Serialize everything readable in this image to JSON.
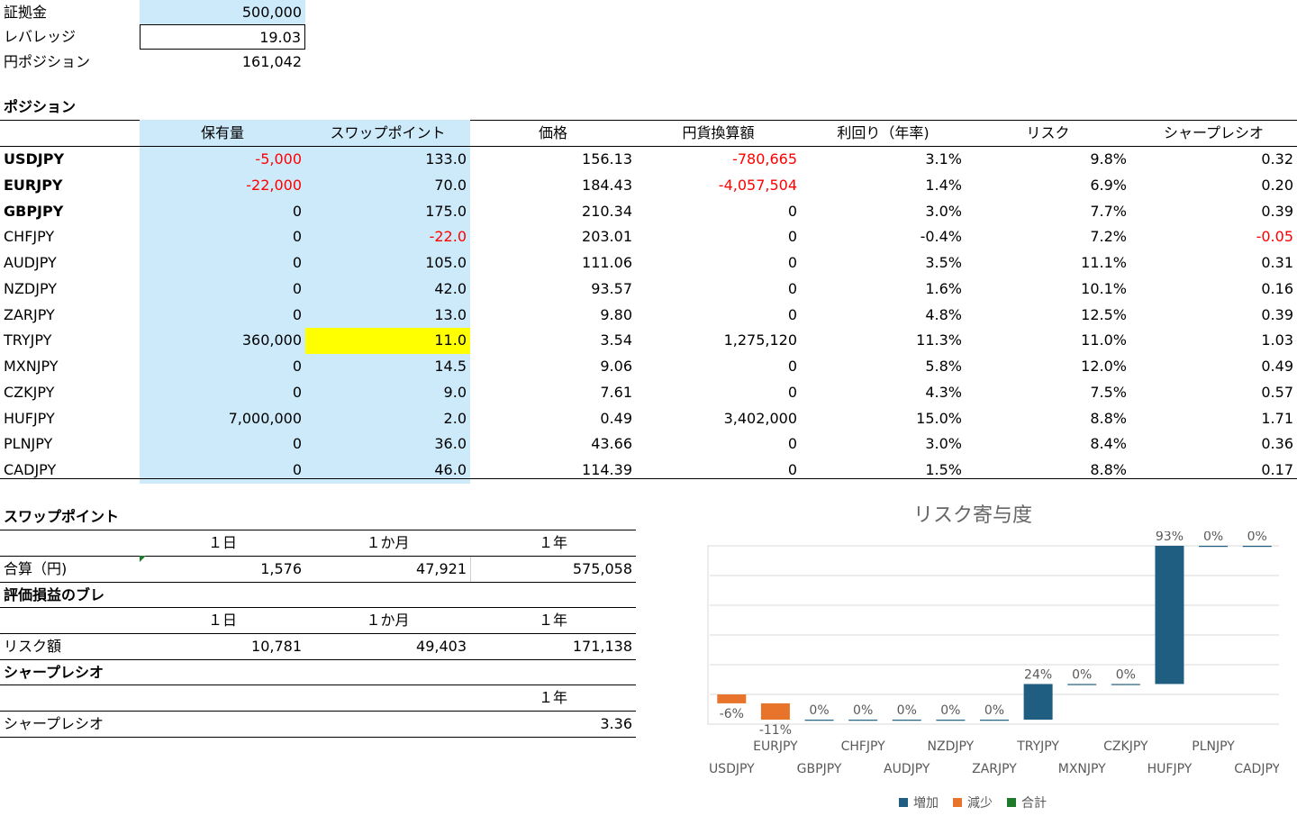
{
  "summary": {
    "margin_label": "証拠金",
    "margin_value": "500,000",
    "leverage_label": "レバレッジ",
    "leverage_value": "19.03",
    "yen_position_label": "円ポジション",
    "yen_position_value": "161,042"
  },
  "positions": {
    "section_title": "ポジション",
    "headers": [
      "保有量",
      "スワップポイント",
      "価格",
      "円貨換算額",
      "利回り（年率)",
      "リスク",
      "シャープレシオ"
    ],
    "rows": [
      {
        "pair": "USDJPY",
        "bold": true,
        "qty": "-5,000",
        "qty_neg": true,
        "swap": "133.0",
        "swap_neg": false,
        "price": "156.13",
        "yen": "-780,665",
        "yen_neg": true,
        "yield": "3.1%",
        "risk": "9.8%",
        "sharpe": "0.32",
        "sharpe_neg": false,
        "swap_hl": false
      },
      {
        "pair": "EURJPY",
        "bold": true,
        "qty": "-22,000",
        "qty_neg": true,
        "swap": "70.0",
        "swap_neg": false,
        "price": "184.43",
        "yen": "-4,057,504",
        "yen_neg": true,
        "yield": "1.4%",
        "risk": "6.9%",
        "sharpe": "0.20",
        "sharpe_neg": false,
        "swap_hl": false
      },
      {
        "pair": "GBPJPY",
        "bold": true,
        "qty": "0",
        "qty_neg": false,
        "swap": "175.0",
        "swap_neg": false,
        "price": "210.34",
        "yen": "0",
        "yen_neg": false,
        "yield": "3.0%",
        "risk": "7.7%",
        "sharpe": "0.39",
        "sharpe_neg": false,
        "swap_hl": false
      },
      {
        "pair": "CHFJPY",
        "bold": false,
        "qty": "0",
        "qty_neg": false,
        "swap": "-22.0",
        "swap_neg": true,
        "price": "203.01",
        "yen": "0",
        "yen_neg": false,
        "yield": "-0.4%",
        "risk": "7.2%",
        "sharpe": "-0.05",
        "sharpe_neg": true,
        "swap_hl": false
      },
      {
        "pair": "AUDJPY",
        "bold": false,
        "qty": "0",
        "qty_neg": false,
        "swap": "105.0",
        "swap_neg": false,
        "price": "111.06",
        "yen": "0",
        "yen_neg": false,
        "yield": "3.5%",
        "risk": "11.1%",
        "sharpe": "0.31",
        "sharpe_neg": false,
        "swap_hl": false
      },
      {
        "pair": "NZDJPY",
        "bold": false,
        "qty": "0",
        "qty_neg": false,
        "swap": "42.0",
        "swap_neg": false,
        "price": "93.57",
        "yen": "0",
        "yen_neg": false,
        "yield": "1.6%",
        "risk": "10.1%",
        "sharpe": "0.16",
        "sharpe_neg": false,
        "swap_hl": false
      },
      {
        "pair": "ZARJPY",
        "bold": false,
        "qty": "0",
        "qty_neg": false,
        "swap": "13.0",
        "swap_neg": false,
        "price": "9.80",
        "yen": "0",
        "yen_neg": false,
        "yield": "4.8%",
        "risk": "12.5%",
        "sharpe": "0.39",
        "sharpe_neg": false,
        "swap_hl": false
      },
      {
        "pair": "TRYJPY",
        "bold": false,
        "qty": "360,000",
        "qty_neg": false,
        "swap": "11.0",
        "swap_neg": false,
        "price": "3.54",
        "yen": "1,275,120",
        "yen_neg": false,
        "yield": "11.3%",
        "risk": "11.0%",
        "sharpe": "1.03",
        "sharpe_neg": false,
        "swap_hl": true
      },
      {
        "pair": "MXNJPY",
        "bold": false,
        "qty": "0",
        "qty_neg": false,
        "swap": "14.5",
        "swap_neg": false,
        "price": "9.06",
        "yen": "0",
        "yen_neg": false,
        "yield": "5.8%",
        "risk": "12.0%",
        "sharpe": "0.49",
        "sharpe_neg": false,
        "swap_hl": false
      },
      {
        "pair": "CZKJPY",
        "bold": false,
        "qty": "0",
        "qty_neg": false,
        "swap": "9.0",
        "swap_neg": false,
        "price": "7.61",
        "yen": "0",
        "yen_neg": false,
        "yield": "4.3%",
        "risk": "7.5%",
        "sharpe": "0.57",
        "sharpe_neg": false,
        "swap_hl": false
      },
      {
        "pair": "HUFJPY",
        "bold": false,
        "qty": "7,000,000",
        "qty_neg": false,
        "swap": "2.0",
        "swap_neg": false,
        "price": "0.49",
        "yen": "3,402,000",
        "yen_neg": false,
        "yield": "15.0%",
        "risk": "8.8%",
        "sharpe": "1.71",
        "sharpe_neg": false,
        "swap_hl": false
      },
      {
        "pair": "PLNJPY",
        "bold": false,
        "qty": "0",
        "qty_neg": false,
        "swap": "36.0",
        "swap_neg": false,
        "price": "43.66",
        "yen": "0",
        "yen_neg": false,
        "yield": "3.0%",
        "risk": "8.4%",
        "sharpe": "0.36",
        "sharpe_neg": false,
        "swap_hl": false
      },
      {
        "pair": "CADJPY",
        "bold": false,
        "qty": "0",
        "qty_neg": false,
        "swap": "46.0",
        "swap_neg": false,
        "price": "114.39",
        "yen": "0",
        "yen_neg": false,
        "yield": "1.5%",
        "risk": "8.8%",
        "sharpe": "0.17",
        "sharpe_neg": false,
        "swap_hl": false
      }
    ]
  },
  "swap_section": {
    "title": "スワップポイント",
    "periods": [
      "１日",
      "１か月",
      "１年"
    ],
    "row_label": "合算（円)",
    "values": [
      "1,576",
      "47,921",
      "575,058"
    ]
  },
  "pl_section": {
    "title": "評価損益のブレ",
    "periods": [
      "１日",
      "１か月",
      "１年"
    ],
    "row_label": "リスク額",
    "values": [
      "10,781",
      "49,403",
      "171,138"
    ]
  },
  "sharpe_section": {
    "title": "シャープレシオ",
    "period": "１年",
    "row_label": "シャープレシオ",
    "value": "3.36"
  },
  "chart_data": {
    "type": "bar",
    "subtype": "waterfall",
    "title": "リスク寄与度",
    "categories": [
      "USDJPY",
      "EURJPY",
      "GBPJPY",
      "CHFJPY",
      "AUDJPY",
      "NZDJPY",
      "ZARJPY",
      "TRYJPY",
      "MXNJPY",
      "CZKJPY",
      "HUFJPY",
      "PLNJPY",
      "CADJPY"
    ],
    "values": [
      -6,
      -11,
      0,
      0,
      0,
      0,
      0,
      24,
      0,
      0,
      93,
      0,
      0
    ],
    "value_labels": [
      "-6%",
      "-11%",
      "0%",
      "0%",
      "0%",
      "0%",
      "0%",
      "24%",
      "0%",
      "0%",
      "93%",
      "0%",
      "0%"
    ],
    "unit": "%",
    "ylim": [
      -20,
      100
    ],
    "grid": true,
    "legend": [
      "増加",
      "減少",
      "合計"
    ],
    "legend_position": "bottom",
    "colors": {
      "increase": "#1f5e80",
      "decrease": "#e8742c",
      "total": "#1e7a2a"
    }
  }
}
